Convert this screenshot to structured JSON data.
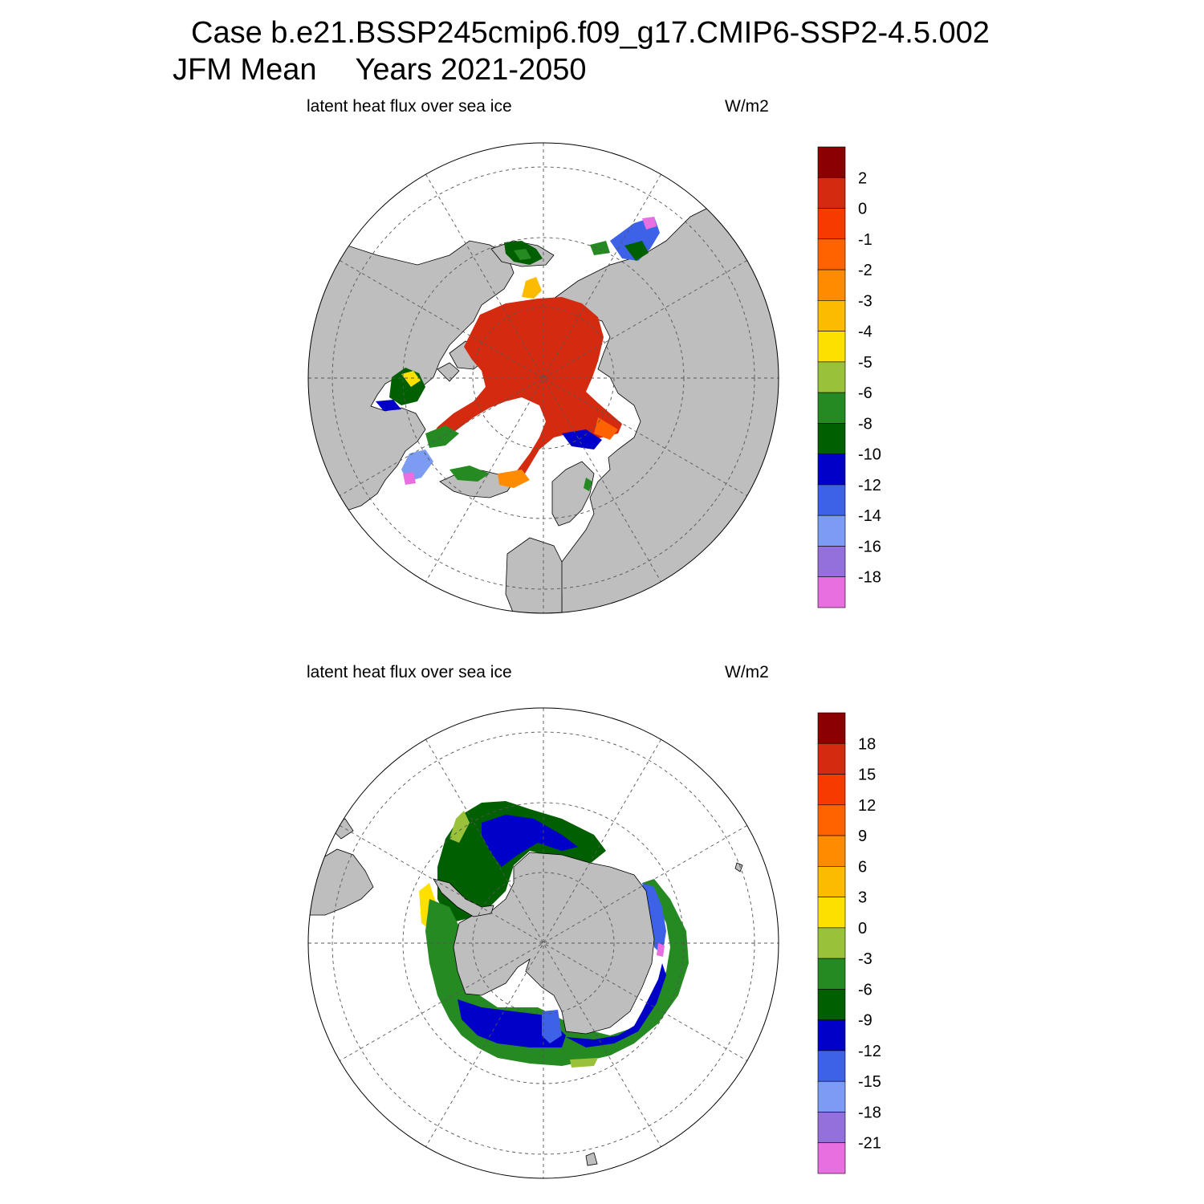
{
  "title": {
    "case_line": "Case b.e21.BSSP245cmip6.f09_g17.CMIP6-SSP2-4.5.002",
    "period": "JFM Mean",
    "years": "Years 2021-2050"
  },
  "panels": [
    {
      "id": "north",
      "hemisphere": "Northern Hemisphere",
      "variable_label": "latent heat flux over sea ice",
      "units": "W/m2",
      "colorbar": {
        "labels": [
          "2",
          "0",
          "-1",
          "-2",
          "-3",
          "-4",
          "-5",
          "-6",
          "-8",
          "-10",
          "-12",
          "-14",
          "-16",
          "-18"
        ],
        "colors": [
          "#8b0000",
          "#d42a10",
          "#f73b00",
          "#fe6300",
          "#ff8c00",
          "#fdbb00",
          "#fde000",
          "#99c13a",
          "#258a22",
          "#005f00",
          "#0000c8",
          "#3d62e7",
          "#7b9cf2",
          "#9370db",
          "#e86fe0"
        ]
      }
    },
    {
      "id": "south",
      "hemisphere": "Southern Hemisphere",
      "variable_label": "latent heat flux over sea ice",
      "units": "W/m2",
      "colorbar": {
        "labels": [
          "18",
          "15",
          "12",
          "9",
          "6",
          "3",
          "0",
          "-3",
          "-6",
          "-9",
          "-12",
          "-15",
          "-18",
          "-21"
        ],
        "colors": [
          "#8b0000",
          "#d42a10",
          "#f73b00",
          "#fe6300",
          "#ff8c00",
          "#fdbb00",
          "#fde000",
          "#99c13a",
          "#258a22",
          "#005f00",
          "#0000c8",
          "#3d62e7",
          "#7b9cf2",
          "#9370db",
          "#e86fe0"
        ]
      }
    }
  ],
  "colors": {
    "land": "#bebebe",
    "ocean": "#ffffff",
    "grid": "#555555"
  }
}
